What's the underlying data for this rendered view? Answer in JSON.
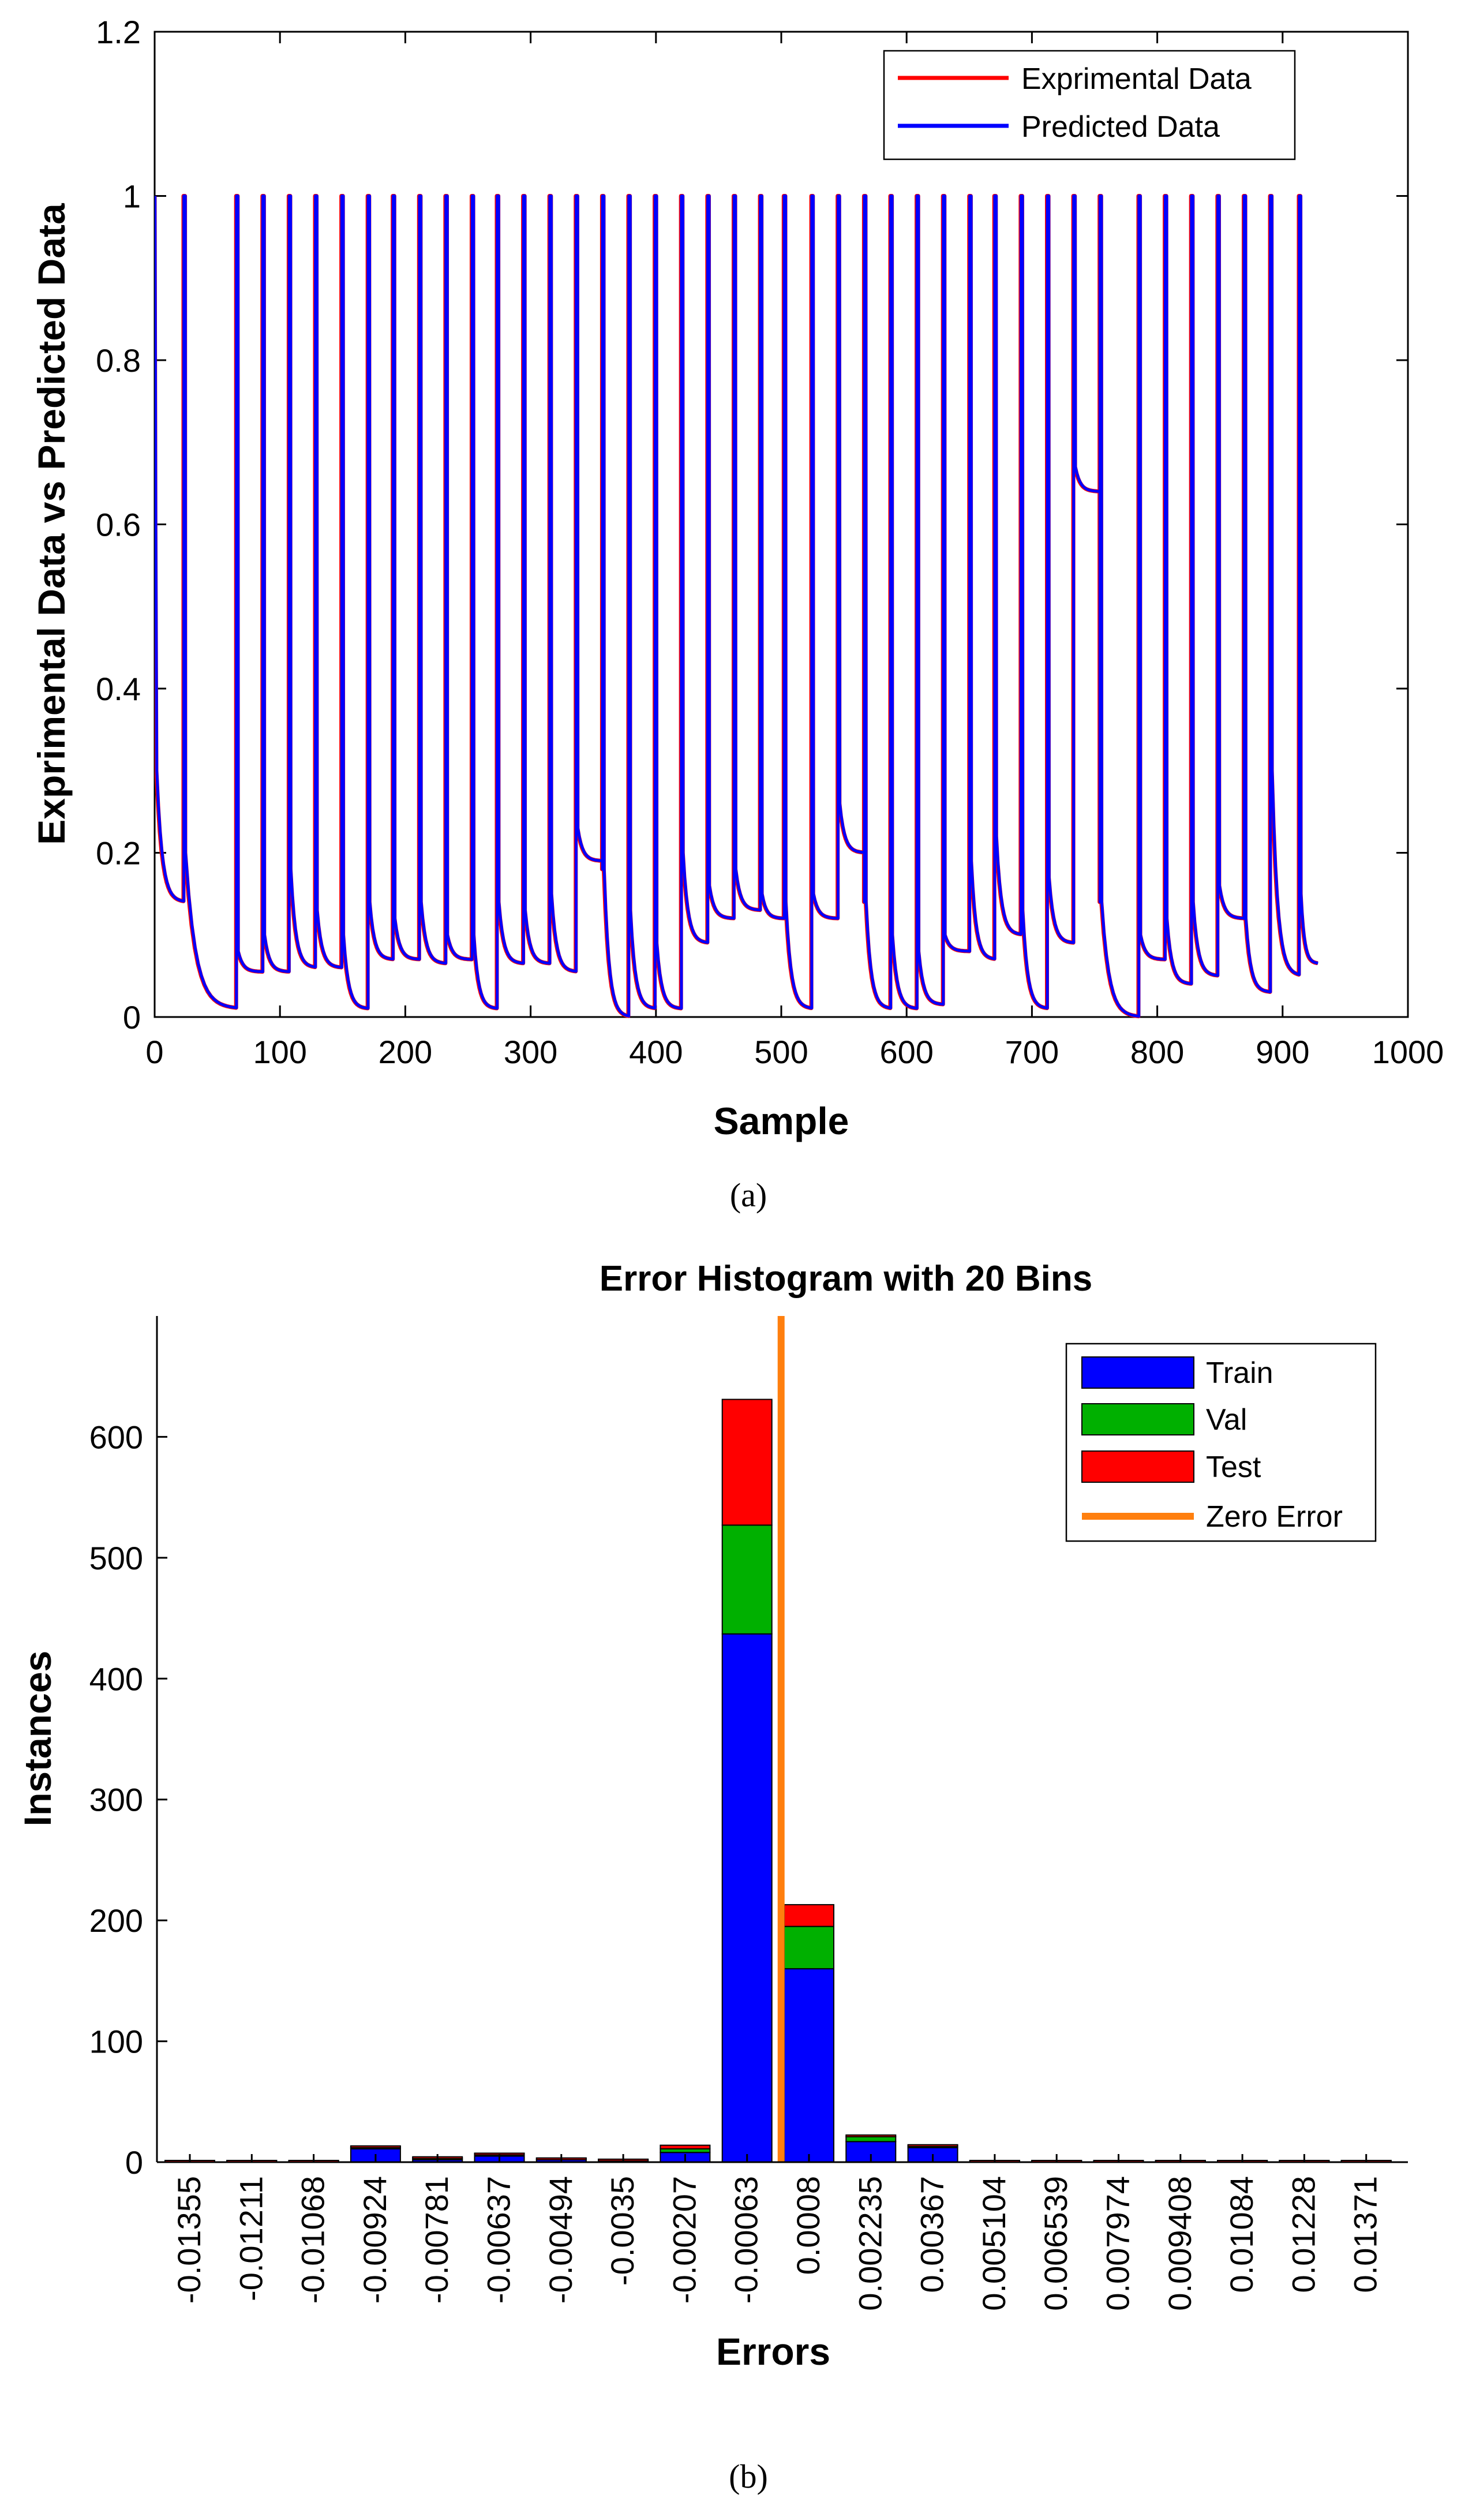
{
  "chart_data": [
    {
      "id": "a",
      "type": "line",
      "caption": "(a)",
      "title": "",
      "xlabel": "Sample",
      "ylabel": "Exprimental Data vs Predicted Data",
      "xlim": [
        0,
        1000
      ],
      "ylim": [
        0,
        1.2
      ],
      "xticks": [
        "0",
        "100",
        "200",
        "300",
        "400",
        "500",
        "600",
        "700",
        "800",
        "900",
        "1000"
      ],
      "yticks": [
        "0",
        "0.2",
        "0.4",
        "0.6",
        "0.8",
        "1",
        "1.2"
      ],
      "legend_position": "top-right",
      "grid": false,
      "series": [
        {
          "name": "Exprimental Data",
          "color": "#ff0000"
        },
        {
          "name": "Predicted Data",
          "color": "#0000ff"
        }
      ],
      "cycles": [
        {
          "start": 0,
          "baseline": 0.3,
          "floor": 0.14
        },
        {
          "start": 23,
          "baseline": 0.2,
          "floor": 0.01
        },
        {
          "start": 65,
          "baseline": 0.08,
          "floor": 0.055
        },
        {
          "start": 86,
          "baseline": 0.1,
          "floor": 0.055
        },
        {
          "start": 107,
          "baseline": 0.18,
          "floor": 0.06
        },
        {
          "start": 128,
          "baseline": 0.13,
          "floor": 0.06
        },
        {
          "start": 149,
          "baseline": 0.1,
          "floor": 0.01
        },
        {
          "start": 170,
          "baseline": 0.14,
          "floor": 0.07
        },
        {
          "start": 190,
          "baseline": 0.12,
          "floor": 0.07
        },
        {
          "start": 211,
          "baseline": 0.14,
          "floor": 0.065
        },
        {
          "start": 232,
          "baseline": 0.1,
          "floor": 0.07
        },
        {
          "start": 253,
          "baseline": 0.1,
          "floor": 0.01
        },
        {
          "start": 273,
          "baseline": 0.14,
          "floor": 0.065
        },
        {
          "start": 294,
          "baseline": 0.13,
          "floor": 0.065
        },
        {
          "start": 315,
          "baseline": 0.15,
          "floor": 0.055
        },
        {
          "start": 336,
          "baseline": 0.23,
          "floor": 0.19
        },
        {
          "start": 357,
          "baseline": 0.18,
          "floor": 0.0
        },
        {
          "start": 378,
          "baseline": 0.13,
          "floor": 0.01
        },
        {
          "start": 399,
          "baseline": 0.09,
          "floor": 0.01
        },
        {
          "start": 420,
          "baseline": 0.2,
          "floor": 0.09
        },
        {
          "start": 441,
          "baseline": 0.16,
          "floor": 0.12
        },
        {
          "start": 462,
          "baseline": 0.18,
          "floor": 0.13
        },
        {
          "start": 483,
          "baseline": 0.15,
          "floor": 0.12
        },
        {
          "start": 502,
          "baseline": 0.14,
          "floor": 0.01
        },
        {
          "start": 524,
          "baseline": 0.15,
          "floor": 0.12
        },
        {
          "start": 545,
          "baseline": 0.26,
          "floor": 0.2
        },
        {
          "start": 566,
          "baseline": 0.14,
          "floor": 0.01
        },
        {
          "start": 587,
          "baseline": 0.1,
          "floor": 0.01
        },
        {
          "start": 608,
          "baseline": 0.08,
          "floor": 0.015
        },
        {
          "start": 629,
          "baseline": 0.1,
          "floor": 0.08
        },
        {
          "start": 650,
          "baseline": 0.19,
          "floor": 0.07
        },
        {
          "start": 670,
          "baseline": 0.22,
          "floor": 0.1
        },
        {
          "start": 691,
          "baseline": 0.13,
          "floor": 0.01
        },
        {
          "start": 712,
          "baseline": 0.17,
          "floor": 0.09
        },
        {
          "start": 733,
          "baseline": 0.67,
          "floor": 0.64
        },
        {
          "start": 754,
          "baseline": 0.14,
          "floor": 0.0
        },
        {
          "start": 785,
          "baseline": 0.1,
          "floor": 0.07
        },
        {
          "start": 806,
          "baseline": 0.12,
          "floor": 0.04
        },
        {
          "start": 827,
          "baseline": 0.14,
          "floor": 0.05
        },
        {
          "start": 848,
          "baseline": 0.16,
          "floor": 0.12
        },
        {
          "start": 869,
          "baseline": 0.12,
          "floor": 0.03
        },
        {
          "start": 890,
          "baseline": 0.3,
          "floor": 0.05
        },
        {
          "start": 913,
          "baseline": 0.15,
          "floor": 0.065
        }
      ],
      "end_x": 928
    },
    {
      "id": "b",
      "type": "bar",
      "stacked": true,
      "caption": "(b)",
      "title": "Error Histogram with 20 Bins",
      "xlabel": "Errors",
      "ylabel": "Instances",
      "ylim": [
        0,
        700
      ],
      "yticks": [
        "0",
        "100",
        "200",
        "300",
        "400",
        "500",
        "600"
      ],
      "categories": [
        "-0.01355",
        "-0.01211",
        "-0.01068",
        "-0.00924",
        "-0.00781",
        "-0.00637",
        "-0.00494",
        "-0.0035",
        "-0.00207",
        "-0.00063",
        "0.0008",
        "0.002235",
        "0.00367",
        "0.005104",
        "0.006539",
        "0.007974",
        "0.009408",
        "0.01084",
        "0.01228",
        "0.01371"
      ],
      "legend_position": "top-right",
      "series": [
        {
          "name": "Train",
          "color": "#0000ff",
          "values": [
            0,
            0,
            0,
            11,
            2,
            5,
            2,
            1,
            8,
            437,
            160,
            17,
            12,
            0,
            0,
            0,
            0,
            0,
            0,
            0
          ]
        },
        {
          "name": "Val",
          "color": "#00b000",
          "values": [
            0,
            0,
            0,
            1,
            1,
            1,
            0,
            0,
            3,
            90,
            35,
            4,
            1,
            0,
            0,
            0,
            0,
            0,
            0,
            0
          ]
        },
        {
          "name": "Test",
          "color": "#ff0000",
          "values": [
            0,
            0,
            0,
            0,
            0,
            0,
            0,
            0,
            3,
            104,
            18,
            1,
            0,
            0,
            0,
            0,
            0,
            0,
            0,
            0
          ]
        }
      ],
      "zero_error": {
        "name": "Zero Error",
        "color": "#ff7f0e",
        "bin_position": 9.55
      }
    }
  ]
}
